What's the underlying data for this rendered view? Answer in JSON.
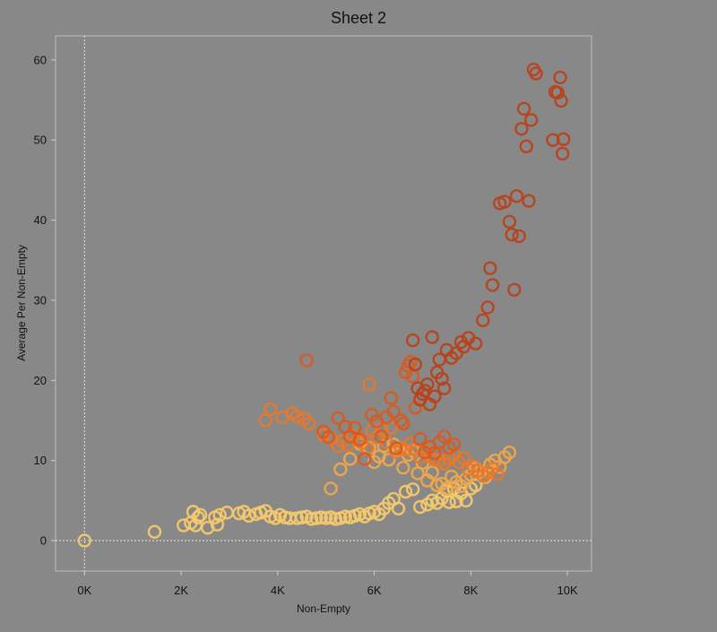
{
  "chart_data": {
    "type": "scatter",
    "title": "Sheet 2",
    "xlabel": "Non-Empty",
    "ylabel": "Average Per Non-Empty",
    "xlim": [
      -600,
      10500
    ],
    "ylim": [
      -3.8,
      63
    ],
    "x_ticks": [
      {
        "value": 0,
        "label": "0K"
      },
      {
        "value": 2000,
        "label": "2K"
      },
      {
        "value": 4000,
        "label": "4K"
      },
      {
        "value": 6000,
        "label": "6K"
      },
      {
        "value": 8000,
        "label": "8K"
      },
      {
        "value": 10000,
        "label": "10K"
      }
    ],
    "y_ticks": [
      0,
      10,
      20,
      30,
      40,
      50,
      60
    ],
    "zero_lines": true,
    "grid": false,
    "marker": "hollow-circle",
    "color_gradient": [
      "#f5c96b",
      "#f0a64a",
      "#e8782a",
      "#d95a1f",
      "#b8421c"
    ],
    "series": [
      {
        "color": "#f5c96b",
        "points": [
          [
            0,
            0
          ],
          [
            1450,
            1.1
          ],
          [
            2050,
            1.9
          ],
          [
            2200,
            2.2
          ],
          [
            2250,
            3.6
          ],
          [
            2300,
            1.9
          ],
          [
            2350,
            2.9
          ],
          [
            2400,
            3.2
          ],
          [
            2550,
            1.6
          ],
          [
            2700,
            2.9
          ],
          [
            2750,
            2.0
          ],
          [
            2800,
            3.2
          ],
          [
            2950,
            3.5
          ],
          [
            3200,
            3.4
          ],
          [
            3300,
            3.6
          ],
          [
            3400,
            3.1
          ],
          [
            3550,
            3.3
          ],
          [
            3650,
            3.5
          ],
          [
            3750,
            3.7
          ],
          [
            3850,
            3.0
          ],
          [
            3950,
            2.8
          ],
          [
            4050,
            3.2
          ],
          [
            4150,
            2.9
          ],
          [
            4250,
            2.8
          ],
          [
            4400,
            2.8
          ],
          [
            4500,
            2.9
          ],
          [
            4600,
            3.0
          ],
          [
            4700,
            2.7
          ],
          [
            4800,
            2.8
          ],
          [
            4900,
            2.9
          ],
          [
            5000,
            2.8
          ],
          [
            5100,
            2.9
          ],
          [
            5200,
            2.7
          ],
          [
            5300,
            2.8
          ],
          [
            5400,
            3.0
          ],
          [
            5500,
            2.9
          ],
          [
            5600,
            3.1
          ],
          [
            5700,
            3.3
          ],
          [
            5800,
            3.0
          ],
          [
            5900,
            3.4
          ],
          [
            6000,
            3.6
          ],
          [
            6100,
            3.3
          ],
          [
            6200,
            4.0
          ],
          [
            6300,
            4.7
          ],
          [
            6400,
            5.2
          ],
          [
            6500,
            4.0
          ],
          [
            6650,
            6.1
          ],
          [
            6800,
            6.4
          ],
          [
            6950,
            4.2
          ],
          [
            7100,
            4.5
          ],
          [
            7200,
            5.0
          ],
          [
            7300,
            4.7
          ],
          [
            7400,
            5.3
          ],
          [
            7500,
            6.2
          ],
          [
            7550,
            4.8
          ],
          [
            7650,
            6.5
          ],
          [
            7700,
            4.9
          ],
          [
            7800,
            5.9
          ],
          [
            7900,
            5.0
          ],
          [
            8000,
            6.5
          ],
          [
            8100,
            6.9
          ]
        ]
      },
      {
        "color": "#f0a64a",
        "points": [
          [
            5100,
            6.5
          ],
          [
            5300,
            8.9
          ],
          [
            5500,
            10.2
          ],
          [
            5700,
            12.1
          ],
          [
            5900,
            11.6
          ],
          [
            6000,
            9.8
          ],
          [
            6100,
            10.5
          ],
          [
            6200,
            11.8
          ],
          [
            6300,
            10.1
          ],
          [
            6400,
            12.0
          ],
          [
            6500,
            11.3
          ],
          [
            6600,
            9.1
          ],
          [
            6700,
            10.7
          ],
          [
            6800,
            11.2
          ],
          [
            6900,
            8.4
          ],
          [
            7000,
            9.7
          ],
          [
            7100,
            7.5
          ],
          [
            7200,
            8.5
          ],
          [
            7300,
            6.9
          ],
          [
            7400,
            7.1
          ],
          [
            7500,
            6.5
          ],
          [
            7600,
            8.0
          ],
          [
            7700,
            7.3
          ],
          [
            7800,
            6.8
          ],
          [
            7900,
            7.7
          ],
          [
            8000,
            8.2
          ],
          [
            8100,
            9.0
          ],
          [
            8200,
            8.6
          ],
          [
            8300,
            7.9
          ],
          [
            8400,
            9.5
          ],
          [
            8500,
            10.0
          ],
          [
            8600,
            9.2
          ],
          [
            8700,
            10.4
          ],
          [
            8800,
            11.0
          ]
        ]
      },
      {
        "color": "#e8782a",
        "points": [
          [
            3750,
            15.0
          ],
          [
            3850,
            16.4
          ],
          [
            4100,
            15.4
          ],
          [
            4300,
            15.9
          ],
          [
            4400,
            15.5
          ],
          [
            4550,
            15.2
          ],
          [
            4650,
            14.6
          ],
          [
            4950,
            13.2
          ],
          [
            5100,
            12.7
          ],
          [
            5250,
            11.8
          ],
          [
            5350,
            12.4
          ],
          [
            5450,
            11.9
          ],
          [
            5550,
            13.1
          ],
          [
            5650,
            12.6
          ],
          [
            5750,
            12.2
          ],
          [
            5850,
            11.5
          ],
          [
            5900,
            19.5
          ],
          [
            5950,
            13.7
          ],
          [
            6050,
            12.9
          ],
          [
            6150,
            13.9
          ],
          [
            6250,
            12.3
          ],
          [
            6350,
            14.1
          ],
          [
            6450,
            11.1
          ],
          [
            6550,
            11.6
          ],
          [
            6650,
            11.3
          ],
          [
            6750,
            12.1
          ],
          [
            6850,
            11.4
          ],
          [
            6950,
            10.4
          ],
          [
            7050,
            11.2
          ],
          [
            7150,
            10.5
          ],
          [
            7250,
            10.1
          ],
          [
            7350,
            10.0
          ],
          [
            7450,
            9.6
          ],
          [
            7550,
            10.2
          ],
          [
            7650,
            10.7
          ],
          [
            7750,
            9.8
          ],
          [
            7850,
            10.3
          ],
          [
            7950,
            8.9
          ],
          [
            8050,
            9.3
          ],
          [
            8150,
            8.7
          ],
          [
            8250,
            8.1
          ],
          [
            8350,
            8.5
          ],
          [
            8450,
            9.0
          ],
          [
            8550,
            8.3
          ]
        ]
      },
      {
        "color": "#d95a1f",
        "points": [
          [
            4600,
            22.5
          ],
          [
            4950,
            13.6
          ],
          [
            5050,
            12.9
          ],
          [
            5250,
            15.3
          ],
          [
            5400,
            14.2
          ],
          [
            5500,
            13.0
          ],
          [
            5600,
            14.1
          ],
          [
            5700,
            12.6
          ],
          [
            5800,
            10.2
          ],
          [
            5950,
            15.7
          ],
          [
            6050,
            14.9
          ],
          [
            6150,
            13.0
          ],
          [
            6250,
            15.4
          ],
          [
            6350,
            17.8
          ],
          [
            6400,
            16.1
          ],
          [
            6450,
            11.5
          ],
          [
            6550,
            15.0
          ],
          [
            6600,
            14.6
          ],
          [
            6650,
            21.0
          ],
          [
            6700,
            21.8
          ],
          [
            6750,
            22.3
          ],
          [
            6800,
            20.5
          ],
          [
            6850,
            16.6
          ],
          [
            6950,
            12.7
          ],
          [
            7050,
            11.0
          ],
          [
            7150,
            11.7
          ],
          [
            7250,
            10.9
          ],
          [
            7350,
            12.3
          ],
          [
            7450,
            13.0
          ],
          [
            7550,
            11.6
          ],
          [
            7650,
            12.0
          ]
        ]
      },
      {
        "color": "#b8421c",
        "points": [
          [
            6800,
            25.0
          ],
          [
            6850,
            22.0
          ],
          [
            6900,
            19.0
          ],
          [
            6950,
            17.6
          ],
          [
            7000,
            18.3
          ],
          [
            7050,
            18.7
          ],
          [
            7100,
            19.5
          ],
          [
            7150,
            17.0
          ],
          [
            7200,
            25.4
          ],
          [
            7250,
            18.0
          ],
          [
            7300,
            21.0
          ],
          [
            7350,
            22.6
          ],
          [
            7400,
            20.2
          ],
          [
            7450,
            19.0
          ],
          [
            7500,
            23.8
          ],
          [
            7600,
            22.8
          ],
          [
            7700,
            23.4
          ],
          [
            7800,
            24.8
          ],
          [
            7850,
            24.2
          ],
          [
            7950,
            25.3
          ],
          [
            8100,
            24.6
          ],
          [
            8250,
            27.5
          ],
          [
            8350,
            29.1
          ],
          [
            8400,
            34.0
          ],
          [
            8450,
            31.9
          ],
          [
            8600,
            42.1
          ],
          [
            8700,
            42.3
          ],
          [
            8800,
            39.8
          ],
          [
            8850,
            38.2
          ],
          [
            8900,
            31.3
          ],
          [
            8950,
            43.0
          ],
          [
            9000,
            38.0
          ],
          [
            9050,
            51.4
          ],
          [
            9100,
            53.9
          ],
          [
            9150,
            49.2
          ],
          [
            9200,
            42.4
          ],
          [
            9250,
            52.5
          ],
          [
            9300,
            58.8
          ],
          [
            9350,
            58.3
          ],
          [
            9700,
            50.0
          ],
          [
            9750,
            56.0
          ],
          [
            9800,
            55.9
          ],
          [
            9850,
            57.8
          ],
          [
            9870,
            54.9
          ],
          [
            9900,
            48.3
          ],
          [
            9920,
            50.1
          ]
        ]
      }
    ]
  }
}
